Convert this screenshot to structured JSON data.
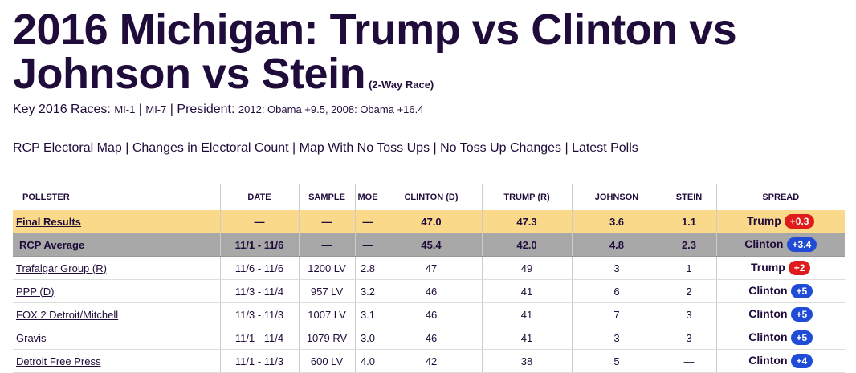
{
  "title": {
    "main": "2016 Michigan: Trump vs Clinton vs Johnson vs Stein",
    "sub": "(2-Way Race)"
  },
  "key_races": {
    "label": "Key 2016 Races:",
    "races": [
      "MI-1",
      "MI-7"
    ],
    "president_label": "President:",
    "president_history": "2012: Obama +9.5, 2008: Obama +16.4"
  },
  "nav": [
    "RCP Electoral Map",
    "Changes in Electoral Count",
    "Map With No Toss Ups",
    "No Toss Up Changes",
    "Latest Polls"
  ],
  "table": {
    "headers": [
      "POLLSTER",
      "DATE",
      "SAMPLE",
      "MOE",
      "CLINTON (D)",
      "TRUMP (R)",
      "JOHNSON",
      "STEIN",
      "SPREAD"
    ],
    "final": {
      "pollster": "Final Results",
      "date": "—",
      "sample": "—",
      "moe": "—",
      "clinton": "47.0",
      "trump": "47.3",
      "johnson": "3.6",
      "stein": "1.1",
      "spread_name": "Trump",
      "spread_value": "+0.3"
    },
    "rcp": {
      "pollster": "RCP Average",
      "date": "11/1 - 11/6",
      "sample": "—",
      "moe": "—",
      "clinton": "45.4",
      "trump": "42.0",
      "johnson": "4.8",
      "stein": "2.3",
      "spread_name": "Clinton",
      "spread_value": "+3.4"
    },
    "rows": [
      {
        "pollster": "Trafalgar Group (R)",
        "date": "11/6 - 11/6",
        "sample": "1200 LV",
        "moe": "2.8",
        "clinton": "47",
        "trump": "49",
        "johnson": "3",
        "stein": "1",
        "spread_name": "Trump",
        "spread_value": "+2"
      },
      {
        "pollster": "PPP (D)",
        "date": "11/3 - 11/4",
        "sample": "957 LV",
        "moe": "3.2",
        "clinton": "46",
        "trump": "41",
        "johnson": "6",
        "stein": "2",
        "spread_name": "Clinton",
        "spread_value": "+5"
      },
      {
        "pollster": "FOX 2 Detroit/Mitchell",
        "date": "11/3 - 11/3",
        "sample": "1007 LV",
        "moe": "3.1",
        "clinton": "46",
        "trump": "41",
        "johnson": "7",
        "stein": "3",
        "spread_name": "Clinton",
        "spread_value": "+5"
      },
      {
        "pollster": "Gravis",
        "date": "11/1 - 11/4",
        "sample": "1079 RV",
        "moe": "3.0",
        "clinton": "46",
        "trump": "41",
        "johnson": "3",
        "stein": "3",
        "spread_name": "Clinton",
        "spread_value": "+5"
      },
      {
        "pollster": "Detroit Free Press",
        "date": "11/1 - 11/3",
        "sample": "600 LV",
        "moe": "4.0",
        "clinton": "42",
        "trump": "38",
        "johnson": "5",
        "stein": "—",
        "spread_name": "Clinton",
        "spread_value": "+4"
      }
    ]
  },
  "colors": {
    "dem": "#1f4bd6",
    "rep": "#e01b1b",
    "final_bg": "#fbd98a",
    "rcp_bg": "#a8a8a8",
    "text": "#1f0c3a"
  }
}
